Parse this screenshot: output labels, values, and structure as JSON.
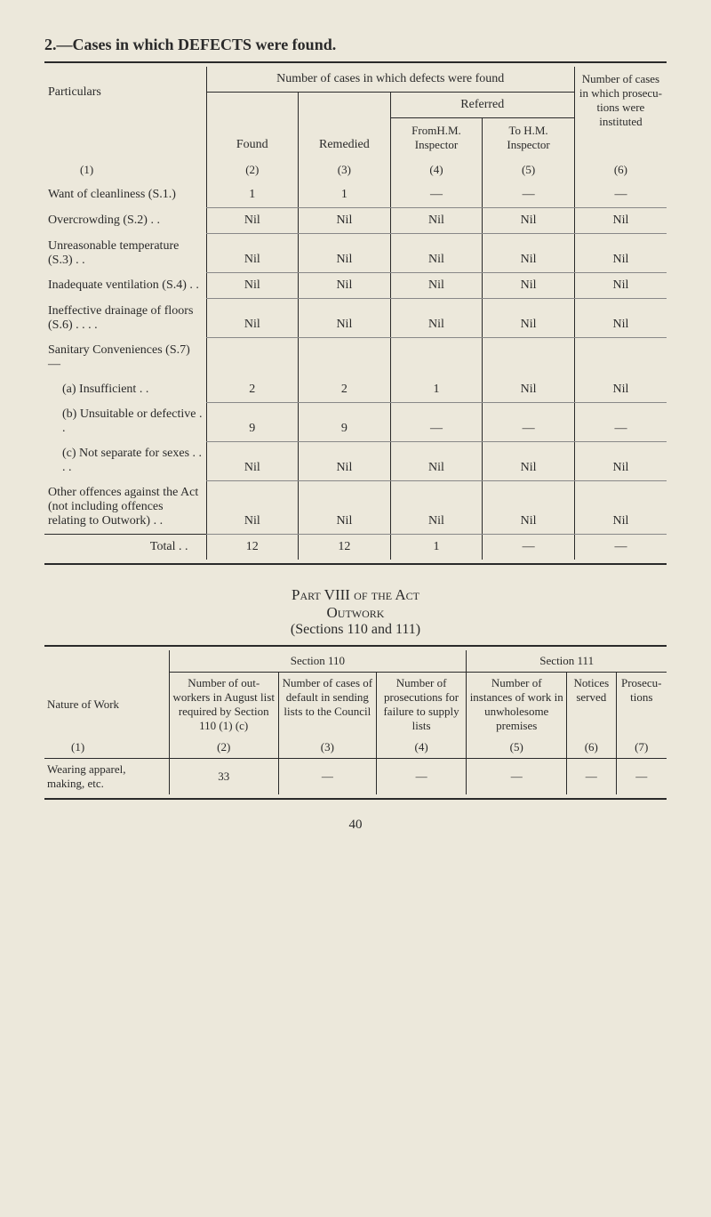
{
  "page": {
    "number": "40",
    "section_title": "2.—Cases in which DEFECTS were found."
  },
  "table1": {
    "top_header": "Number of cases in which defects were found",
    "last_col_header": "Number of cases in which prosecu­tions were instituted",
    "referred_header": "Referred",
    "sub_headers": {
      "particulars": "Particulars",
      "found": "Found",
      "remedied": "Remedied",
      "from_hm": "FromH.M. Inspector",
      "to_hm": "To H.M. Inspector"
    },
    "col_nums": [
      "(1)",
      "(2)",
      "(3)",
      "(4)",
      "(5)",
      "(6)"
    ],
    "rows": [
      {
        "label": "Want of cleanliness (S.1.)",
        "vals": [
          "1",
          "1",
          "—",
          "—",
          "—"
        ],
        "indent": 0
      },
      {
        "label": "Overcrowding (S.2) . .",
        "vals": [
          "Nil",
          "Nil",
          "Nil",
          "Nil",
          "Nil"
        ],
        "indent": 0
      },
      {
        "label": "Unreasonable temperature (S.3) . .",
        "vals": [
          "Nil",
          "Nil",
          "Nil",
          "Nil",
          "Nil"
        ],
        "indent": 0
      },
      {
        "label": "Inadequate ventilation (S.4)  . .",
        "vals": [
          "Nil",
          "Nil",
          "Nil",
          "Nil",
          "Nil"
        ],
        "indent": 0
      },
      {
        "label": "Ineffective drainage of floors (S.6) . .   . .",
        "vals": [
          "Nil",
          "Nil",
          "Nil",
          "Nil",
          "Nil"
        ],
        "indent": 0
      },
      {
        "label": "Sanitary Conveniences (S.7)—",
        "vals": [
          "",
          "",
          "",
          "",
          ""
        ],
        "indent": 0,
        "no_border": true
      },
      {
        "label": "(a) Insufficient  . .",
        "vals": [
          "2",
          "2",
          "1",
          "Nil",
          "Nil"
        ],
        "indent": 1
      },
      {
        "label": "(b) Unsuitable or defective  . .",
        "vals": [
          "9",
          "9",
          "—",
          "—",
          "—"
        ],
        "indent": 1
      },
      {
        "label": "(c) Not separate for sexes . .   . .",
        "vals": [
          "Nil",
          "Nil",
          "Nil",
          "Nil",
          "Nil"
        ],
        "indent": 1
      },
      {
        "label": "Other offences against the Act (not includ­ing offences relating to Outwork)   . .",
        "vals": [
          "Nil",
          "Nil",
          "Nil",
          "Nil",
          "Nil"
        ],
        "indent": 0
      }
    ],
    "total": {
      "label": "Total   . .",
      "vals": [
        "12",
        "12",
        "1",
        "—",
        "—"
      ]
    }
  },
  "part_heading": {
    "line1": "Part VIII of the Act",
    "line2": "Outwork",
    "line3": "(Sections 110 and 111)"
  },
  "table2": {
    "section_headers": [
      "Section 110",
      "Section 111"
    ],
    "row_label": "Nature of Work",
    "col_headers": [
      "Number of out­workers in August list required by Section 110 (1) (c)",
      "Number of cases of default in sending lists to the Council",
      "Number of prosecu­tions for failure to supply lists",
      "Number of instances of work in unwhole­some premises",
      "Notices served",
      "Prosecu­tions"
    ],
    "col_nums": [
      "(1)",
      "(2)",
      "(3)",
      "(4)",
      "(5)",
      "(6)",
      "(7)"
    ],
    "rows": [
      {
        "label": "Wearing apparel, making, etc.",
        "vals": [
          "33",
          "—",
          "—",
          "—",
          "—",
          "—"
        ]
      }
    ]
  }
}
